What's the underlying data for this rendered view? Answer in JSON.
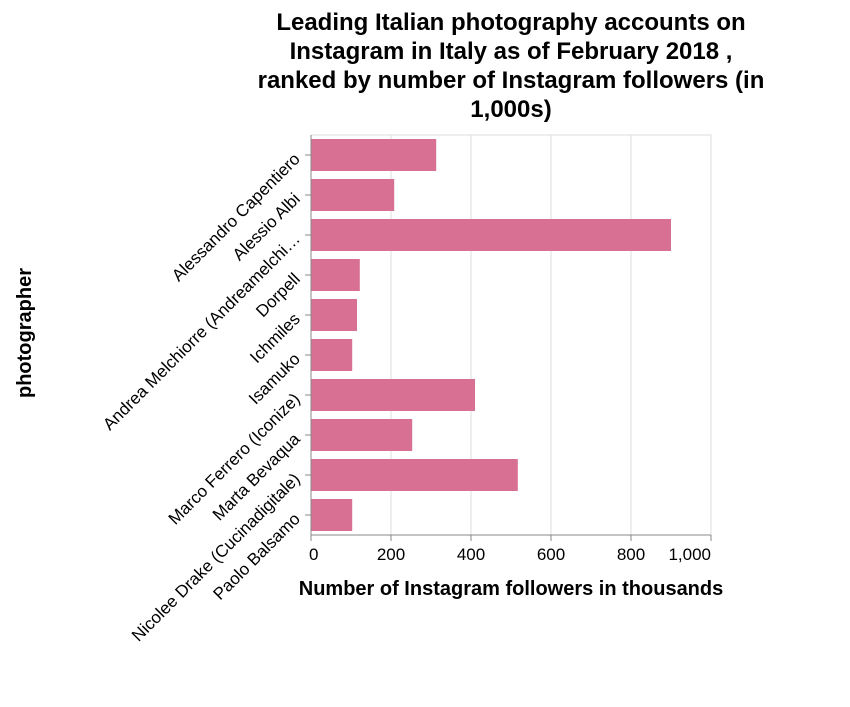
{
  "chart_data": {
    "type": "bar",
    "orientation": "horizontal",
    "title_lines": [
      "Leading Italian photography accounts on",
      "Instagram in Italy as of February 2018 ,",
      "ranked by number of Instagram followers (in",
      "1,000s)"
    ],
    "xlabel": "Number of Instagram followers in thousands",
    "ylabel": "photographer",
    "xlim": [
      0,
      1000
    ],
    "xticks": [
      0,
      200,
      400,
      600,
      800,
      1000
    ],
    "xtick_labels": [
      "0",
      "200",
      "400",
      "600",
      "800",
      "1,000"
    ],
    "grid": true,
    "bar_color": "#d87093",
    "categories": [
      "Alessandro Capentiero",
      "Alessio Albi",
      "Andrea Melchiorre (Andreamelchi…",
      "Dorpell",
      "Ichmiles",
      "Isamuko",
      "Marco Ferrero (Iconize)",
      "Marta Bevaqua",
      "Nicolee Drake (Cucinadigitale)",
      "Paolo Balsamo"
    ],
    "values": [
      313,
      208,
      900,
      122,
      115,
      103,
      410,
      253,
      517,
      103
    ]
  }
}
